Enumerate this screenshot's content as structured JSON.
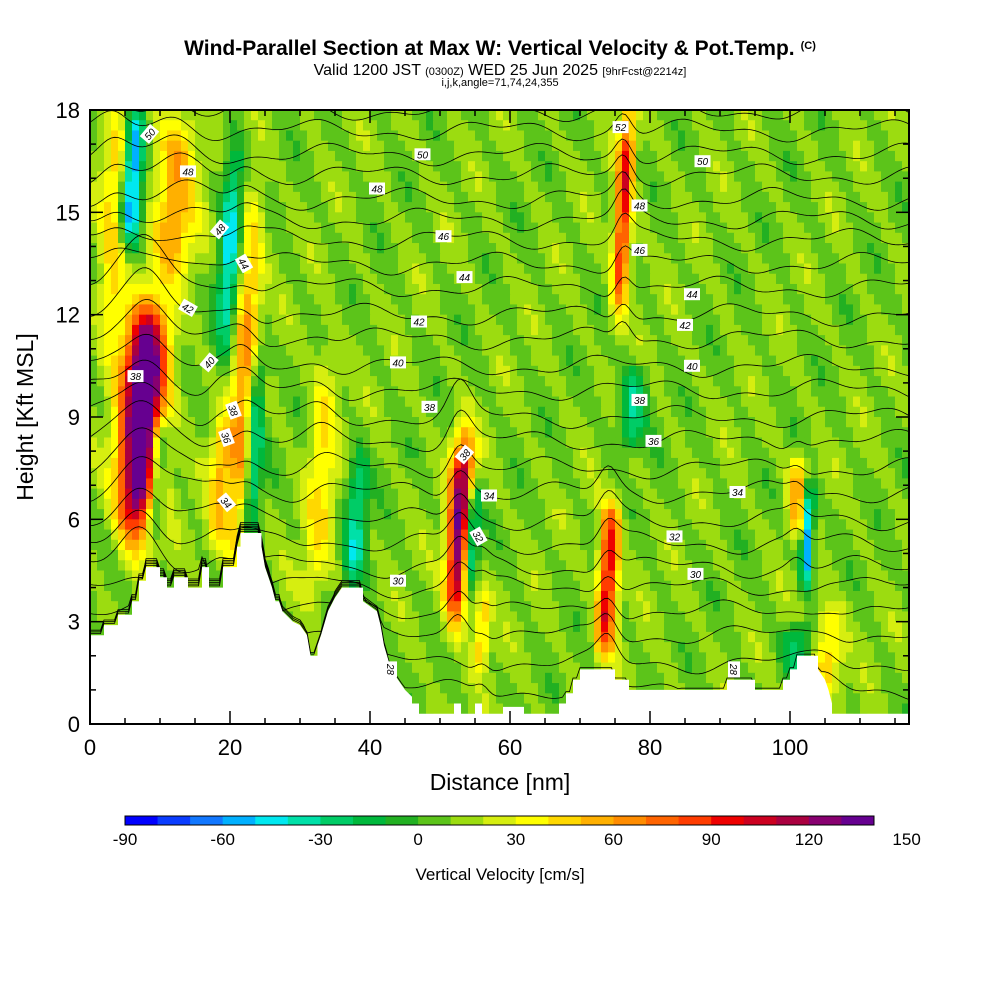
{
  "header": {
    "title": "Wind-Parallel Section at Max W: Vertical Velocity & Pot.Temp.",
    "title_mark": "(C)",
    "valid_prefix": "Valid 1200 JST",
    "valid_utc": "(0300Z)",
    "valid_date": "WED 25 Jun 2025",
    "forecast_tag": "[9hrFcst@2214z]",
    "section_info": "i,j,k,angle=71,74,24,355"
  },
  "chart_data": {
    "type": "heatmap",
    "xlabel": "Distance [nm]",
    "ylabel": "Height [Kft MSL]",
    "xlim": [
      0,
      117
    ],
    "ylim": [
      0,
      18
    ],
    "x_ticks": [
      0,
      20,
      40,
      60,
      80,
      100
    ],
    "y_ticks": [
      0,
      3,
      6,
      9,
      12,
      15,
      18
    ],
    "field": "Vertical Velocity [cm/s]",
    "background_value": 10,
    "updraft_cores": [
      {
        "x": 7.5,
        "bottom": 5.5,
        "top": 12.2,
        "peak": 160,
        "width": 3.0
      },
      {
        "x": 3.5,
        "bottom": 11.0,
        "top": 18.0,
        "peak": 40,
        "width": 2.0
      },
      {
        "x": 12.0,
        "bottom": 13.0,
        "top": 18.0,
        "peak": 50,
        "width": 3.0
      },
      {
        "x": 22.0,
        "bottom": 4.5,
        "top": 15.5,
        "peak": 50,
        "width": 1.8
      },
      {
        "x": 18.5,
        "bottom": 5.0,
        "top": 9.0,
        "peak": 40,
        "width": 1.5
      },
      {
        "x": 33.0,
        "bottom": 3.5,
        "top": 11.0,
        "peak": 30,
        "width": 2.0
      },
      {
        "x": 52.8,
        "bottom": 3.0,
        "top": 8.5,
        "peak": 120,
        "width": 1.6
      },
      {
        "x": 56.0,
        "bottom": 1.5,
        "top": 4.0,
        "peak": 40,
        "width": 1.0
      },
      {
        "x": 74.0,
        "bottom": 2.0,
        "top": 6.5,
        "peak": 95,
        "width": 1.4
      },
      {
        "x": 76.2,
        "bottom": 12.0,
        "top": 18.0,
        "peak": 85,
        "width": 1.2
      },
      {
        "x": 101.0,
        "bottom": 5.5,
        "top": 8.0,
        "peak": 45,
        "width": 1.2
      },
      {
        "x": 105.5,
        "bottom": 1.0,
        "top": 3.5,
        "peak": 40,
        "width": 2.0
      }
    ],
    "downdraft_cores": [
      {
        "x": 6.0,
        "bottom": 14.0,
        "top": 18.0,
        "peak": -80,
        "width": 1.5
      },
      {
        "x": 9.5,
        "bottom": 5.5,
        "top": 9.0,
        "peak": -70,
        "width": 1.3
      },
      {
        "x": 20.0,
        "bottom": 11.0,
        "top": 17.0,
        "peak": -55,
        "width": 1.5
      },
      {
        "x": 23.5,
        "bottom": 5.5,
        "top": 11.0,
        "peak": -50,
        "width": 1.2
      },
      {
        "x": 38.0,
        "bottom": 4.0,
        "top": 8.0,
        "peak": -45,
        "width": 1.5
      },
      {
        "x": 54.5,
        "bottom": 4.0,
        "top": 7.0,
        "peak": -65,
        "width": 1.0
      },
      {
        "x": 77.5,
        "bottom": 8.0,
        "top": 10.5,
        "peak": -40,
        "width": 2.0
      },
      {
        "x": 102.5,
        "bottom": 4.0,
        "top": 7.0,
        "peak": -75,
        "width": 0.8
      },
      {
        "x": 101.0,
        "bottom": 1.5,
        "top": 3.0,
        "peak": -35,
        "width": 2.0
      }
    ],
    "terrain": [
      [
        0,
        2.6
      ],
      [
        2,
        2.6
      ],
      [
        2,
        2.9
      ],
      [
        4,
        2.9
      ],
      [
        4,
        3.2
      ],
      [
        6,
        3.2
      ],
      [
        6,
        3.6
      ],
      [
        7,
        3.6
      ],
      [
        7,
        4.2
      ],
      [
        8,
        4.2
      ],
      [
        8,
        4.6
      ],
      [
        10,
        4.6
      ],
      [
        10,
        4.3
      ],
      [
        11,
        4.3
      ],
      [
        11,
        4.0
      ],
      [
        12,
        4.0
      ],
      [
        12,
        4.3
      ],
      [
        14,
        4.3
      ],
      [
        14,
        4.0
      ],
      [
        16,
        4.0
      ],
      [
        16,
        4.6
      ],
      [
        17,
        4.6
      ],
      [
        17,
        4.0
      ],
      [
        19,
        4.0
      ],
      [
        19,
        4.6
      ],
      [
        21,
        4.6
      ],
      [
        21,
        5.2
      ],
      [
        21.5,
        5.2
      ],
      [
        21.5,
        5.6
      ],
      [
        24.5,
        5.6
      ],
      [
        24.5,
        5.2
      ],
      [
        25,
        4.6
      ],
      [
        26,
        4.0
      ],
      [
        26.5,
        3.6
      ],
      [
        27,
        3.6
      ],
      [
        27.5,
        3.3
      ],
      [
        29,
        3.0
      ],
      [
        30,
        2.9
      ],
      [
        31,
        2.6
      ],
      [
        31.5,
        2.0
      ],
      [
        32.5,
        2.0
      ],
      [
        32.5,
        2.3
      ],
      [
        33,
        2.6
      ],
      [
        34,
        3.3
      ],
      [
        35,
        3.7
      ],
      [
        36,
        4.0
      ],
      [
        39,
        4.0
      ],
      [
        39,
        3.6
      ],
      [
        41,
        3.3
      ],
      [
        41.5,
        2.9
      ],
      [
        42,
        2.3
      ],
      [
        43,
        1.6
      ],
      [
        44,
        1.3
      ],
      [
        45,
        1.0
      ],
      [
        46,
        0.8
      ],
      [
        46,
        0.6
      ],
      [
        47,
        0.6
      ],
      [
        47,
        0.3
      ],
      [
        52,
        0.3
      ],
      [
        52,
        0.6
      ],
      [
        53,
        0.6
      ],
      [
        53,
        0.3
      ],
      [
        55,
        0.3
      ],
      [
        55,
        0.6
      ],
      [
        56,
        0.6
      ],
      [
        56,
        0.3
      ],
      [
        59,
        0.3
      ],
      [
        59,
        0.5
      ],
      [
        62,
        0.5
      ],
      [
        62,
        0.3
      ],
      [
        67,
        0.3
      ],
      [
        67,
        0.6
      ],
      [
        68,
        0.6
      ],
      [
        68,
        0.9
      ],
      [
        69,
        0.9
      ],
      [
        69,
        1.3
      ],
      [
        70,
        1.3
      ],
      [
        70,
        1.6
      ],
      [
        75,
        1.6
      ],
      [
        75,
        1.3
      ],
      [
        77,
        1.3
      ],
      [
        77,
        1.0
      ],
      [
        91,
        1.0
      ],
      [
        91,
        1.3
      ],
      [
        95,
        1.3
      ],
      [
        95,
        1.0
      ],
      [
        99,
        1.0
      ],
      [
        99,
        1.3
      ],
      [
        100,
        1.3
      ],
      [
        100,
        1.6
      ],
      [
        101,
        1.6
      ],
      [
        101,
        2.0
      ],
      [
        104,
        2.0
      ],
      [
        104,
        1.6
      ],
      [
        105,
        1.3
      ],
      [
        105.5,
        1.0
      ],
      [
        106,
        0.6
      ],
      [
        106,
        0.3
      ],
      [
        117,
        0.3
      ]
    ],
    "theta_contours": [
      {
        "level": 28,
        "base": 1.0
      },
      {
        "level": 29,
        "base": 1.8
      },
      {
        "level": 30,
        "base": 2.6
      },
      {
        "level": 31,
        "base": 3.3
      },
      {
        "level": 32,
        "base": 4.0
      },
      {
        "level": 33,
        "base": 4.6
      },
      {
        "level": 34,
        "base": 5.3
      },
      {
        "level": 35,
        "base": 6.0
      },
      {
        "level": 36,
        "base": 6.8
      },
      {
        "level": 37,
        "base": 7.5
      },
      {
        "level": 38,
        "base": 8.3
      },
      {
        "level": 39,
        "base": 9.0
      },
      {
        "level": 40,
        "base": 9.8
      },
      {
        "level": 41,
        "base": 10.5
      },
      {
        "level": 42,
        "base": 11.3
      },
      {
        "level": 43,
        "base": 12.0
      },
      {
        "level": 44,
        "base": 12.8
      },
      {
        "level": 45,
        "base": 13.5
      },
      {
        "level": 46,
        "base": 14.2
      },
      {
        "level": 47,
        "base": 14.8
      },
      {
        "level": 48,
        "base": 15.4
      },
      {
        "level": 49,
        "base": 16.1
      },
      {
        "level": 50,
        "base": 16.7
      },
      {
        "level": 51,
        "base": 17.4
      },
      {
        "level": 52,
        "base": 18.0
      }
    ],
    "contour_labels": [
      {
        "text": "50",
        "x": 8.5,
        "y": 17.3,
        "angle": -50
      },
      {
        "text": "50",
        "x": 47.5,
        "y": 16.7,
        "angle": 0
      },
      {
        "text": "50",
        "x": 87.5,
        "y": 16.5,
        "angle": 0
      },
      {
        "text": "52",
        "x": 75.8,
        "y": 17.5,
        "angle": 0
      },
      {
        "text": "48",
        "x": 14.0,
        "y": 16.2,
        "angle": 0
      },
      {
        "text": "48",
        "x": 41.0,
        "y": 15.7,
        "angle": 0
      },
      {
        "text": "48",
        "x": 78.5,
        "y": 15.2,
        "angle": 0
      },
      {
        "text": "48",
        "x": 18.5,
        "y": 14.5,
        "angle": -50
      },
      {
        "text": "46",
        "x": 50.5,
        "y": 14.3,
        "angle": 0
      },
      {
        "text": "46",
        "x": 78.5,
        "y": 13.9,
        "angle": 0
      },
      {
        "text": "44",
        "x": 22.0,
        "y": 13.5,
        "angle": 60
      },
      {
        "text": "44",
        "x": 53.5,
        "y": 13.1,
        "angle": 0
      },
      {
        "text": "44",
        "x": 86.0,
        "y": 12.6,
        "angle": 0
      },
      {
        "text": "42",
        "x": 14.0,
        "y": 12.2,
        "angle": 30
      },
      {
        "text": "42",
        "x": 47.0,
        "y": 11.8,
        "angle": 0
      },
      {
        "text": "42",
        "x": 85.0,
        "y": 11.7,
        "angle": 0
      },
      {
        "text": "40",
        "x": 17.0,
        "y": 10.6,
        "angle": -50
      },
      {
        "text": "40",
        "x": 44.0,
        "y": 10.6,
        "angle": 0
      },
      {
        "text": "40",
        "x": 86.0,
        "y": 10.5,
        "angle": 0
      },
      {
        "text": "38",
        "x": 6.5,
        "y": 10.2,
        "angle": 0
      },
      {
        "text": "38",
        "x": 48.5,
        "y": 9.3,
        "angle": 0
      },
      {
        "text": "38",
        "x": 78.5,
        "y": 9.5,
        "angle": 0
      },
      {
        "text": "38",
        "x": 20.5,
        "y": 9.2,
        "angle": 70
      },
      {
        "text": "38",
        "x": 53.5,
        "y": 7.9,
        "angle": -50
      },
      {
        "text": "36",
        "x": 19.5,
        "y": 8.4,
        "angle": 70
      },
      {
        "text": "36",
        "x": 80.5,
        "y": 8.3,
        "angle": 0
      },
      {
        "text": "34",
        "x": 19.5,
        "y": 6.5,
        "angle": 50
      },
      {
        "text": "34",
        "x": 57.0,
        "y": 6.7,
        "angle": 0
      },
      {
        "text": "34",
        "x": 92.5,
        "y": 6.8,
        "angle": 0
      },
      {
        "text": "32",
        "x": 55.5,
        "y": 5.5,
        "angle": 60
      },
      {
        "text": "32",
        "x": 83.5,
        "y": 5.5,
        "angle": 0
      },
      {
        "text": "30",
        "x": 44.0,
        "y": 4.2,
        "angle": 0
      },
      {
        "text": "30",
        "x": 86.5,
        "y": 4.4,
        "angle": 0
      },
      {
        "text": "28",
        "x": 43.0,
        "y": 1.6,
        "angle": 90
      },
      {
        "text": "28",
        "x": 92.0,
        "y": 1.6,
        "angle": 90
      }
    ]
  },
  "colorbar": {
    "title": "Vertical Velocity [cm/s]",
    "min": -90,
    "step": 10,
    "labels": [
      "-90",
      "-60",
      "-30",
      "0",
      "30",
      "60",
      "90",
      "120",
      "150"
    ],
    "colors": [
      "#0000ff",
      "#0a3cff",
      "#1177ff",
      "#00b0ff",
      "#00e8f0",
      "#00e0a8",
      "#00cc66",
      "#00b83c",
      "#22b022",
      "#5cc41a",
      "#9cdc10",
      "#d6ee10",
      "#ffff00",
      "#ffd800",
      "#ffb000",
      "#ff8c00",
      "#ff6400",
      "#ff3c00",
      "#ee0000",
      "#cc0020",
      "#aa0040",
      "#880070",
      "#660090"
    ]
  }
}
